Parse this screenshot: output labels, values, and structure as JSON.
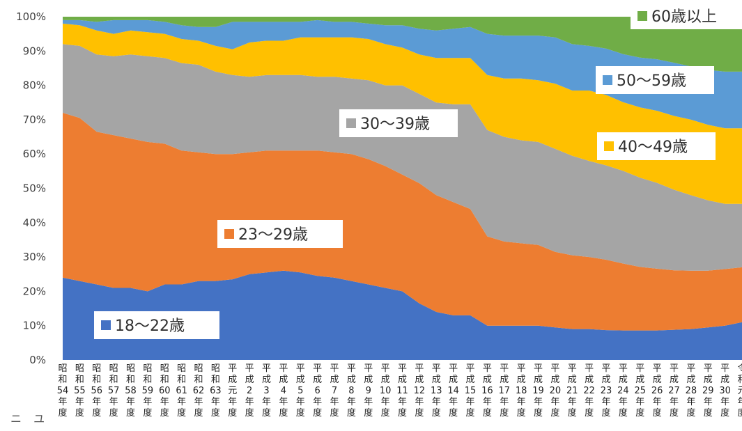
{
  "chart_data": {
    "type": "area",
    "stacked": true,
    "title": "",
    "xlabel": "",
    "ylabel": "",
    "ylim": [
      0,
      100
    ],
    "yticks": [
      "0%",
      "10%",
      "20%",
      "30%",
      "40%",
      "50%",
      "60%",
      "70%",
      "80%",
      "90%",
      "100%"
    ],
    "categories": [
      [
        "昭",
        "和",
        "54",
        "年",
        "度"
      ],
      [
        "昭",
        "和",
        "55",
        "年",
        "度"
      ],
      [
        "昭",
        "和",
        "56",
        "年",
        "度"
      ],
      [
        "昭",
        "和",
        "57",
        "年",
        "度"
      ],
      [
        "昭",
        "和",
        "58",
        "年",
        "度"
      ],
      [
        "昭",
        "和",
        "59",
        "年",
        "度"
      ],
      [
        "昭",
        "和",
        "60",
        "年",
        "度"
      ],
      [
        "昭",
        "和",
        "61",
        "年",
        "度"
      ],
      [
        "昭",
        "和",
        "62",
        "年",
        "度"
      ],
      [
        "昭",
        "和",
        "63",
        "年",
        "度"
      ],
      [
        "平",
        "成",
        "元",
        "年",
        "度"
      ],
      [
        "平",
        "成",
        "2",
        "年",
        "度"
      ],
      [
        "平",
        "成",
        "3",
        "年",
        "度"
      ],
      [
        "平",
        "成",
        "4",
        "年",
        "度"
      ],
      [
        "平",
        "成",
        "5",
        "年",
        "度"
      ],
      [
        "平",
        "成",
        "6",
        "年",
        "度"
      ],
      [
        "平",
        "成",
        "7",
        "年",
        "度"
      ],
      [
        "平",
        "成",
        "8",
        "年",
        "度"
      ],
      [
        "平",
        "成",
        "9",
        "年",
        "度"
      ],
      [
        "平",
        "成",
        "10",
        "年",
        "度"
      ],
      [
        "平",
        "成",
        "11",
        "年",
        "度"
      ],
      [
        "平",
        "成",
        "12",
        "年",
        "度"
      ],
      [
        "平",
        "成",
        "13",
        "年",
        "度"
      ],
      [
        "平",
        "成",
        "14",
        "年",
        "度"
      ],
      [
        "平",
        "成",
        "15",
        "年",
        "度"
      ],
      [
        "平",
        "成",
        "16",
        "年",
        "度"
      ],
      [
        "平",
        "成",
        "17",
        "年",
        "度"
      ],
      [
        "平",
        "成",
        "18",
        "年",
        "度"
      ],
      [
        "平",
        "成",
        "19",
        "年",
        "度"
      ],
      [
        "平",
        "成",
        "20",
        "年",
        "度"
      ],
      [
        "平",
        "成",
        "21",
        "年",
        "度"
      ],
      [
        "平",
        "成",
        "22",
        "年",
        "度"
      ],
      [
        "平",
        "成",
        "23",
        "年",
        "度"
      ],
      [
        "平",
        "成",
        "24",
        "年",
        "度"
      ],
      [
        "平",
        "成",
        "25",
        "年",
        "度"
      ],
      [
        "平",
        "成",
        "26",
        "年",
        "度"
      ],
      [
        "平",
        "成",
        "27",
        "年",
        "度"
      ],
      [
        "平",
        "成",
        "28",
        "年",
        "度"
      ],
      [
        "平",
        "成",
        "29",
        "年",
        "度"
      ],
      [
        "平",
        "成",
        "30",
        "年",
        "度"
      ],
      [
        "令",
        "和",
        "元",
        "年",
        "度"
      ]
    ],
    "series": [
      {
        "name": "18〜22歳",
        "color": "#4472C4",
        "values": [
          24,
          23,
          22,
          21,
          21,
          20,
          22,
          22,
          23,
          23,
          23.5,
          25,
          25.5,
          26,
          25.5,
          24.5,
          24,
          23,
          22,
          21,
          20,
          16.5,
          14,
          13,
          13,
          10,
          10,
          10,
          10,
          9.5,
          9,
          9,
          8.7,
          8.6,
          8.6,
          8.6,
          8.8,
          9,
          9.5,
          10,
          11
        ]
      },
      {
        "name": "23〜29歳",
        "color": "#ED7D31",
        "values": [
          48,
          47.5,
          44.5,
          44.5,
          43.5,
          43.5,
          41,
          39,
          37.5,
          37,
          36.5,
          35.5,
          35.5,
          35,
          35.5,
          36.5,
          36.5,
          37,
          36.5,
          35.5,
          34,
          35,
          34,
          33,
          31,
          26,
          24.5,
          24,
          23.5,
          22,
          21.5,
          21,
          20.5,
          19.5,
          18.5,
          18,
          17.3,
          17,
          16.5,
          16.5,
          16
        ]
      },
      {
        "name": "30〜39歳",
        "color": "#A5A5A5",
        "values": [
          20,
          21,
          22.5,
          23,
          24.5,
          25,
          25,
          25.5,
          25.5,
          24,
          23,
          22,
          22,
          22,
          22,
          21.5,
          22,
          22,
          23,
          23.5,
          26,
          26,
          27,
          28.5,
          30.5,
          31,
          30.5,
          30,
          30,
          30,
          29,
          28,
          27.5,
          27,
          26,
          25,
          23.5,
          22,
          20.5,
          19,
          18.5
        ]
      },
      {
        "name": "40〜49歳",
        "color": "#FFC000",
        "values": [
          6,
          6,
          7,
          6.5,
          7,
          7,
          7,
          7,
          7,
          7.5,
          7.5,
          10,
          10,
          10,
          11,
          11.5,
          11.5,
          12,
          12,
          12,
          11,
          11.5,
          13,
          13.5,
          13.5,
          16,
          17,
          18,
          18,
          19,
          19,
          20.5,
          20.5,
          20,
          20.5,
          21,
          21.5,
          22,
          22,
          22,
          22
        ]
      },
      {
        "name": "50〜59歳",
        "color": "#5B9BD5",
        "values": [
          1,
          1.5,
          2.5,
          4,
          3,
          3.5,
          3.5,
          4,
          4,
          5.5,
          8,
          6,
          5.5,
          5.5,
          4.5,
          5,
          4.5,
          4.5,
          4.5,
          5.5,
          6.5,
          7.5,
          8,
          8.5,
          9,
          12,
          12.5,
          12.5,
          13,
          13.5,
          13.5,
          13,
          13.5,
          14,
          14.5,
          15,
          15.5,
          15.5,
          16,
          16.5,
          16.5
        ]
      },
      {
        "name": "60歳以上",
        "color": "#70AD47",
        "values": [
          1,
          1,
          1.5,
          1,
          1,
          1,
          1.5,
          2.5,
          3,
          3,
          1.5,
          1.5,
          1.5,
          1.5,
          1.5,
          1,
          1.5,
          1.5,
          2,
          2.5,
          2.5,
          3.5,
          4,
          3.5,
          3,
          5,
          5.5,
          5.5,
          5.5,
          6,
          8,
          8.5,
          9.3,
          10.9,
          11.9,
          12.4,
          13.4,
          14.5,
          15.5,
          16,
          16
        ]
      }
    ]
  },
  "page": {
    "corner_text": "ニ ユ"
  }
}
